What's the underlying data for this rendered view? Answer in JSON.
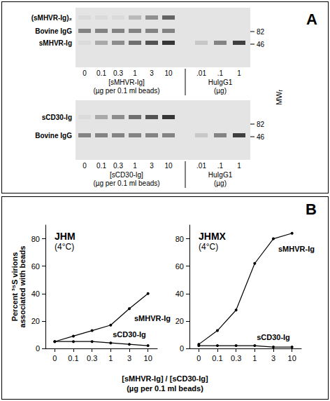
{
  "panel_a": {
    "letter": "A",
    "mw_label": "MWᵣ",
    "mw_markers": [
      82,
      46
    ],
    "gels": [
      {
        "bands": [
          "(sMHVR-Ig)₂",
          "Bovine IgG",
          "sMHVR-Ig"
        ],
        "lanes": [
          "0",
          "0.1",
          "0.3",
          "1",
          "3",
          "10"
        ],
        "lanes_label": [
          "[sMHVR-Ig]",
          "(µg per 0.1 ml beads)"
        ],
        "standard_lanes": [
          ".01",
          ".1",
          "1"
        ],
        "standard_label": [
          "HuIgG1",
          "(µg)"
        ]
      },
      {
        "bands": [
          "sCD30-Ig",
          "Bovine IgG"
        ],
        "lanes": [
          "0",
          "0.1",
          "0.3",
          "1",
          "3",
          "10"
        ],
        "lanes_label": [
          "[sCD30-Ig]",
          "(µg per 0.1 ml beads)"
        ],
        "standard_lanes": [
          ".01",
          ".1",
          "1"
        ],
        "standard_label": [
          "HuIgG1",
          "(µg)"
        ]
      }
    ]
  },
  "panel_b": {
    "letter": "B",
    "ylabel": "Percent ³⁵S virions associated with beads",
    "xlabel": [
      "[sMHVR-Ig] / [sCD30-Ig]",
      "(µg per 0.1 ml beads)"
    ]
  },
  "chart_data": [
    {
      "type": "line",
      "title": "JHM",
      "subtitle": "(4°C)",
      "categories": [
        "0",
        "0.1",
        "0.3",
        "1",
        "3",
        "10"
      ],
      "series": [
        {
          "name": "sMHVR-Ig",
          "color": "#000000",
          "marker": "circle",
          "values": [
            5,
            9,
            13,
            17,
            29,
            40
          ]
        },
        {
          "name": "sCD30-Ig",
          "color": "#000000",
          "marker": "circle",
          "values": [
            5,
            5,
            5,
            4,
            3,
            2
          ]
        }
      ],
      "ylim": [
        0,
        90
      ],
      "yticks": [
        0,
        20,
        40,
        60,
        80
      ],
      "grid": false
    },
    {
      "type": "line",
      "title": "JHMX",
      "subtitle": "(4°C)",
      "categories": [
        "0",
        "0.1",
        "0.3",
        "1",
        "3",
        "10"
      ],
      "series": [
        {
          "name": "sMHVR-Ig",
          "color": "#000000",
          "marker": "circle",
          "values": [
            3,
            13,
            28,
            62,
            80,
            84
          ]
        },
        {
          "name": "sCD30-Ig",
          "color": "#000000",
          "marker": "circle",
          "values": [
            2,
            2,
            2,
            2,
            1,
            1
          ]
        }
      ],
      "ylim": [
        0,
        90
      ],
      "yticks": [
        0,
        20,
        40,
        60,
        80
      ],
      "grid": false
    }
  ]
}
